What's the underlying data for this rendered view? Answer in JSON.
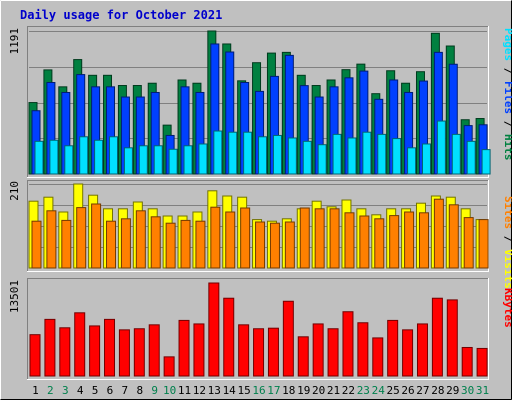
{
  "chart_data": {
    "title": "Daily usage for October 2021",
    "type": "bar",
    "categories": [
      "1",
      "2",
      "3",
      "4",
      "5",
      "6",
      "7",
      "8",
      "9",
      "10",
      "11",
      "12",
      "13",
      "14",
      "15",
      "16",
      "17",
      "18",
      "19",
      "20",
      "21",
      "22",
      "23",
      "24",
      "25",
      "26",
      "27",
      "28",
      "29",
      "30",
      "31"
    ],
    "weekend_days": [
      "2",
      "3",
      "9",
      "10",
      "16",
      "17",
      "23",
      "24",
      "30",
      "31"
    ],
    "colors": {
      "background": "#c0c0c0",
      "title": "#0000cc",
      "hits": "#008040",
      "files": "#0040ff",
      "pages": "#00e0ff",
      "visits": "#ffff00",
      "sites": "#ff8000",
      "kbytes": "#ff0000",
      "weekend_label": "#00804d",
      "weekday_label": "#000000"
    },
    "panels": [
      {
        "max_label": "1191",
        "ylim": [
          0,
          1191
        ],
        "legend": [
          {
            "text": "Pages",
            "color": "#00e0ff"
          },
          {
            "text": " / ",
            "color": "#000000"
          },
          {
            "text": "Files",
            "color": "#0040ff"
          },
          {
            "text": " / ",
            "color": "#000000"
          },
          {
            "text": "Hits",
            "color": "#008040"
          }
        ],
        "series": [
          {
            "name": "Hits",
            "color": "#008040",
            "values": [
              595,
              867,
              726,
              953,
              822,
              822,
              737,
              737,
              756,
              407,
              783,
              756,
              1191,
              1083,
              776,
              927,
              1007,
              1013,
              822,
              737,
              783,
              869,
              915,
              669,
              860,
              756,
              852,
              1172,
              1066,
              452,
              462
            ]
          },
          {
            "name": "Files",
            "color": "#0040ff",
            "values": [
              527,
              762,
              679,
              828,
              726,
              726,
              641,
              641,
              679,
              321,
              726,
              679,
              1083,
              1016,
              762,
              688,
              813,
              988,
              736,
              641,
              726,
              801,
              857,
              622,
              783,
              679,
              774,
              1013,
              914,
              403,
              410
            ]
          },
          {
            "name": "Pages",
            "color": "#00e0ff",
            "values": [
              272,
              281,
              235,
              310,
              281,
              310,
              218,
              235,
              235,
              206,
              235,
              250,
              358,
              348,
              348,
              310,
              321,
              300,
              272,
              244,
              330,
              300,
              348,
              330,
              295,
              218,
              250,
              441,
              330,
              272,
              203
            ]
          }
        ]
      },
      {
        "max_label": "210",
        "ylim": [
          0,
          210
        ],
        "legend": [
          {
            "text": "Sites",
            "color": "#ff8000"
          },
          {
            "text": " / ",
            "color": "#000000"
          },
          {
            "text": "Visits",
            "color": "#ffff00"
          }
        ],
        "series": [
          {
            "name": "Visits",
            "color": "#ffff00",
            "values": [
              167,
              177,
              140,
              210,
              182,
              148,
              148,
              165,
              148,
              130,
              130,
              140,
              193,
              180,
              177,
              121,
              117,
              123,
              148,
              167,
              153,
              170,
              148,
              133,
              148,
              148,
              162,
              180,
              177,
              148,
              121
            ]
          },
          {
            "name": "Sites",
            "color": "#ff8000",
            "values": [
              117,
              143,
              119,
              151,
              160,
              117,
              123,
              143,
              128,
              112,
              119,
              117,
              152,
              140,
              150,
              115,
              112,
              115,
              150,
              148,
              148,
              138,
              130,
              123,
              131,
              140,
              138,
              172,
              158,
              126,
              121
            ]
          }
        ]
      },
      {
        "max_label": "13501",
        "ylim": [
          0,
          13501
        ],
        "legend": [
          {
            "text": "KBytes",
            "color": "#ff0000"
          }
        ],
        "series": [
          {
            "name": "KBytes",
            "color": "#ff0000",
            "values": [
              6000,
              8220,
              7000,
              9175,
              7270,
              8220,
              6700,
              6860,
              7430,
              2780,
              8070,
              7560,
              13501,
              11290,
              7430,
              6860,
              6940,
              10850,
              5690,
              7560,
              6860,
              9330,
              7730,
              5530,
              8070,
              6700,
              7560,
              11290,
              11050,
              4140,
              4000
            ]
          }
        ]
      }
    ]
  }
}
